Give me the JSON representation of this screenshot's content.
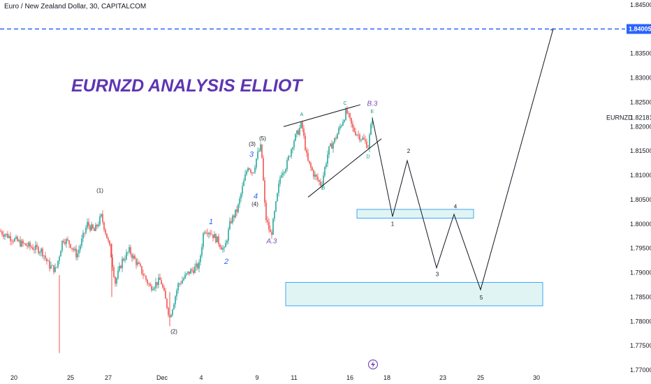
{
  "header": {
    "symbol_line": "Euro / New Zealand Dollar, 30, CAPITALCOM"
  },
  "colors": {
    "up": "#26a69a",
    "down": "#ef5350",
    "zone_fill": "#e0f5f3",
    "zone_stroke": "#42a5f5",
    "target_line": "#2962ff",
    "title": "#5e35b1",
    "wave_blue": "#2962ff",
    "wave_teal": "#089981",
    "wave_purple": "#7b4fb8"
  },
  "icons": {
    "bottom_center": "lightning-icon"
  },
  "chart_data": {
    "type": "candlestick",
    "title": "EURNZD ANALYSIS ELLIOT",
    "symbol_label": "EURNZD",
    "current_price": "1.82181",
    "target_price": "1.84005",
    "ylim": [
      1.77,
      1.845
    ],
    "price_ticks": [
      "1.84500",
      "1.84000",
      "1.83500",
      "1.83000",
      "1.82500",
      "1.82000",
      "1.81500",
      "1.81000",
      "1.80500",
      "1.80000",
      "1.79500",
      "1.79000",
      "1.78500",
      "1.78000",
      "1.77500",
      "1.77000"
    ],
    "x_ticks": [
      "20",
      "25",
      "27",
      "Dec",
      "4",
      "9",
      "11",
      "16",
      "18",
      "23",
      "25",
      "30"
    ],
    "price_path": [
      [
        0,
        1.7985
      ],
      [
        30,
        1.796
      ],
      [
        60,
        1.7945
      ],
      [
        70,
        1.7915
      ],
      [
        80,
        1.7905
      ],
      [
        90,
        1.797
      ],
      [
        100,
        1.796
      ],
      [
        110,
        1.7935
      ],
      [
        125,
        1.8
      ],
      [
        135,
        1.7985
      ],
      [
        145,
        1.8015
      ],
      [
        150,
        1.799
      ],
      [
        158,
        1.7945
      ],
      [
        165,
        1.788
      ],
      [
        175,
        1.7925
      ],
      [
        185,
        1.7945
      ],
      [
        200,
        1.791
      ],
      [
        215,
        1.787
      ],
      [
        230,
        1.7885
      ],
      [
        243,
        1.7808
      ],
      [
        255,
        1.7875
      ],
      [
        270,
        1.79
      ],
      [
        285,
        1.7915
      ],
      [
        292,
        1.799
      ],
      [
        300,
        1.7985
      ],
      [
        312,
        1.7965
      ],
      [
        321,
        1.7945
      ],
      [
        330,
        1.8005
      ],
      [
        340,
        1.803
      ],
      [
        348,
        1.808
      ],
      [
        355,
        1.812
      ],
      [
        362,
        1.8105
      ],
      [
        368,
        1.814
      ],
      [
        374,
        1.816
      ],
      [
        380,
        1.8015
      ],
      [
        388,
        1.7975
      ],
      [
        395,
        1.804
      ],
      [
        402,
        1.8105
      ],
      [
        410,
        1.812
      ],
      [
        420,
        1.817
      ],
      [
        432,
        1.8205
      ],
      [
        440,
        1.813
      ],
      [
        450,
        1.81
      ],
      [
        460,
        1.808
      ],
      [
        470,
        1.815
      ],
      [
        480,
        1.8175
      ],
      [
        490,
        1.821
      ],
      [
        496,
        1.8232
      ],
      [
        505,
        1.8195
      ],
      [
        515,
        1.818
      ],
      [
        522,
        1.817
      ],
      [
        527,
        1.816
      ],
      [
        533,
        1.8218
      ]
    ],
    "candle_range": [
      1.7735,
      1.8235
    ],
    "wicks": [
      [
        85,
        1.7735,
        1.7895
      ],
      [
        160,
        1.785,
        1.796
      ],
      [
        243,
        1.779,
        1.786
      ]
    ],
    "projection": [
      [
        533,
        1.8218
      ],
      [
        562,
        1.8015
      ],
      [
        583,
        1.813
      ],
      [
        625,
        1.791
      ],
      [
        650,
        1.802
      ],
      [
        688,
        1.7865
      ],
      [
        792,
        1.8401
      ]
    ],
    "target_zones": [
      {
        "x0": 511,
        "x1": 678,
        "y0": 1.803,
        "y1": 1.8012
      },
      {
        "x0": 409,
        "x1": 777,
        "y0": 1.788,
        "y1": 1.7832
      }
    ],
    "wave_lines": [
      [
        [
          406,
          1.82
        ],
        [
          516,
          1.8245
        ]
      ],
      [
        [
          441,
          1.8055
        ],
        [
          546,
          1.8175
        ]
      ]
    ],
    "labels_black": [
      {
        "t": "(1)",
        "x": 143,
        "y": 1.8065
      },
      {
        "t": "(2)",
        "x": 249,
        "y": 1.7775
      },
      {
        "t": "(3)",
        "x": 361,
        "y": 1.816
      },
      {
        "t": "(4)",
        "x": 365,
        "y": 1.8037
      },
      {
        "t": "(5)",
        "x": 376,
        "y": 1.8172
      },
      {
        "t": "1",
        "x": 562,
        "y": 1.7996
      },
      {
        "t": "2",
        "x": 585,
        "y": 1.8146
      },
      {
        "t": "3",
        "x": 626,
        "y": 1.7893
      },
      {
        "t": "4",
        "x": 652,
        "y": 1.8032
      },
      {
        "t": "5",
        "x": 689,
        "y": 1.7845
      }
    ],
    "labels_blue": [
      {
        "t": "1",
        "x": 302,
        "y": 1.8
      },
      {
        "t": "2",
        "x": 324,
        "y": 1.7918
      },
      {
        "t": "3",
        "x": 360,
        "y": 1.8138
      },
      {
        "t": "4",
        "x": 366,
        "y": 1.8052
      }
    ],
    "labels_teal": [
      {
        "t": "A",
        "x": 432,
        "y": 1.8222
      },
      {
        "t": "B",
        "x": 463,
        "y": 1.8071
      },
      {
        "t": "C",
        "x": 494,
        "y": 1.8245
      },
      {
        "t": "D",
        "x": 527,
        "y": 1.8135
      },
      {
        "t": "E",
        "x": 533,
        "y": 1.8228
      }
    ],
    "labels_purple": [
      {
        "t": "A.3",
        "x": 389,
        "y": 1.796
      },
      {
        "t": "B.3",
        "x": 533,
        "y": 1.8243
      }
    ]
  }
}
